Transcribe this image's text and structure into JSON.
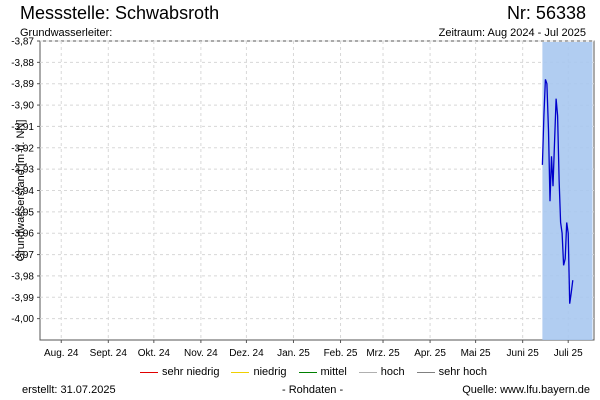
{
  "header": {
    "title": "Messstelle: Schwabsroth",
    "number": "Nr: 56338",
    "subtitle": "Grundwasserleiter:",
    "period": "Zeitraum: Aug 2024 - Jul 2025"
  },
  "legend": [
    {
      "label": "sehr niedrig",
      "color": "#e00000"
    },
    {
      "label": "niedrig",
      "color": "#f0d000"
    },
    {
      "label": "mittel",
      "color": "#008000"
    },
    {
      "label": "hoch",
      "color": "#b0b0b0"
    },
    {
      "label": "sehr hoch",
      "color": "#808080"
    }
  ],
  "footer": {
    "created": "erstellt:  31.07.2025",
    "note": "- Rohdaten -",
    "source": "Quelle: www.lfu.bayern.de"
  },
  "chart_data": {
    "type": "line",
    "ylabel": "Grundwasserstand [m ü. NN]",
    "ylim": [
      -4.01,
      -3.87
    ],
    "yticks": [
      "-3,87",
      "-3,88",
      "-3,89",
      "-3,90",
      "-3,91",
      "-3,92",
      "-3,93",
      "-3,94",
      "-3,95",
      "-3,96",
      "-3,97",
      "-3,98",
      "-3,99",
      "-4,00"
    ],
    "ytick_values": [
      -3.87,
      -3.88,
      -3.89,
      -3.9,
      -3.91,
      -3.92,
      -3.93,
      -3.94,
      -3.95,
      -3.96,
      -3.97,
      -3.98,
      -3.99,
      -4.0
    ],
    "xlim": [
      "2024-08-01",
      "2025-08-01"
    ],
    "xticks": [
      "Aug. 24",
      "Sept. 24",
      "Okt. 24",
      "Nov. 24",
      "Dez. 24",
      "Jan. 25",
      "Feb. 25",
      "Mrz. 25",
      "Apr. 25",
      "Mai 25",
      "Juni 25",
      "Juli 25"
    ],
    "xtick_dates": [
      "2024-08-15",
      "2024-09-15",
      "2024-10-15",
      "2024-11-15",
      "2024-12-15",
      "2025-01-15",
      "2025-02-15",
      "2025-03-15",
      "2025-04-15",
      "2025-05-15",
      "2025-06-15",
      "2025-07-15"
    ],
    "grid": true,
    "shaded_range": {
      "x": [
        "2025-06-28",
        "2025-07-31"
      ],
      "color": "#a8c8f0"
    },
    "series": [
      {
        "color": "#0000cc",
        "points": [
          [
            "2025-06-28",
            -3.928
          ],
          [
            "2025-06-29",
            -3.905
          ],
          [
            "2025-06-30",
            -3.888
          ],
          [
            "2025-07-01",
            -3.89
          ],
          [
            "2025-07-02",
            -3.912
          ],
          [
            "2025-07-03",
            -3.945
          ],
          [
            "2025-07-04",
            -3.924
          ],
          [
            "2025-07-05",
            -3.938
          ],
          [
            "2025-07-06",
            -3.918
          ],
          [
            "2025-07-07",
            -3.897
          ],
          [
            "2025-07-08",
            -3.905
          ],
          [
            "2025-07-09",
            -3.935
          ],
          [
            "2025-07-10",
            -3.955
          ],
          [
            "2025-07-11",
            -3.96
          ],
          [
            "2025-07-12",
            -3.975
          ],
          [
            "2025-07-13",
            -3.972
          ],
          [
            "2025-07-14",
            -3.955
          ],
          [
            "2025-07-15",
            -3.96
          ],
          [
            "2025-07-16",
            -3.993
          ],
          [
            "2025-07-17",
            -3.988
          ],
          [
            "2025-07-18",
            -3.982
          ]
        ]
      }
    ]
  }
}
